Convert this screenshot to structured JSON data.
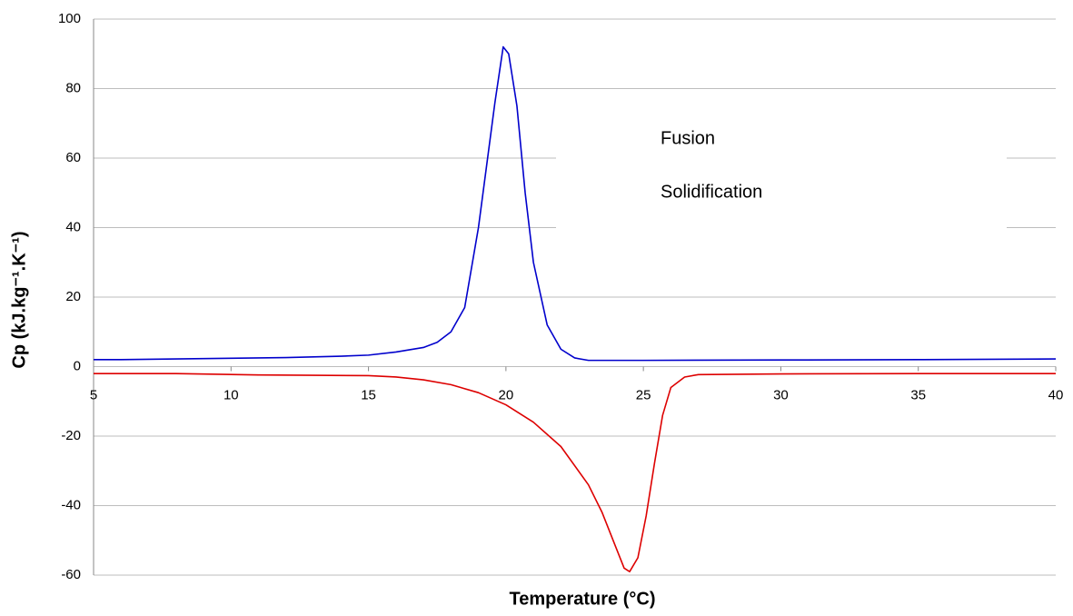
{
  "chart_data": {
    "type": "line",
    "xlabel": "Temperature (°C)",
    "ylabel": "Cp (kJ.kg⁻¹.K⁻¹)",
    "series": [
      {
        "name": "Fusion",
        "color": "#0000cc",
        "x": [
          5,
          6,
          8,
          10,
          12,
          14,
          15,
          16,
          17,
          17.5,
          18,
          18.5,
          19,
          19.3,
          19.6,
          19.9,
          20.1,
          20.4,
          20.7,
          21,
          21.5,
          22,
          22.5,
          23,
          25,
          30,
          35,
          40
        ],
        "values": [
          2,
          2,
          2.2,
          2.4,
          2.6,
          3,
          3.3,
          4.2,
          5.5,
          7,
          10,
          17,
          40,
          58,
          76,
          92,
          90,
          75,
          50,
          30,
          12,
          5,
          2.5,
          1.8,
          1.8,
          1.9,
          2,
          2.2
        ]
      },
      {
        "name": "Solidification",
        "color": "#dd0000",
        "x": [
          5,
          8,
          11,
          13,
          15,
          16,
          17,
          18,
          19,
          20,
          21,
          22,
          23,
          23.5,
          24,
          24.3,
          24.5,
          24.8,
          25.1,
          25.4,
          25.7,
          26,
          26.5,
          27,
          30,
          35,
          40
        ],
        "values": [
          -2,
          -2,
          -2.4,
          -2.5,
          -2.6,
          -3,
          -3.8,
          -5.2,
          -7.5,
          -11,
          -16,
          -23,
          -34,
          -42,
          -52,
          -58,
          -59,
          -55,
          -43,
          -28,
          -14,
          -6,
          -3,
          -2.3,
          -2.1,
          -2,
          -2
        ]
      }
    ],
    "xlim": [
      5,
      40
    ],
    "xticks": [
      5,
      10,
      15,
      20,
      25,
      30,
      35,
      40
    ],
    "ylim": [
      -60,
      100
    ],
    "yticks": [
      -60,
      -40,
      -20,
      0,
      20,
      40,
      60,
      80,
      100
    ],
    "grid": true
  }
}
